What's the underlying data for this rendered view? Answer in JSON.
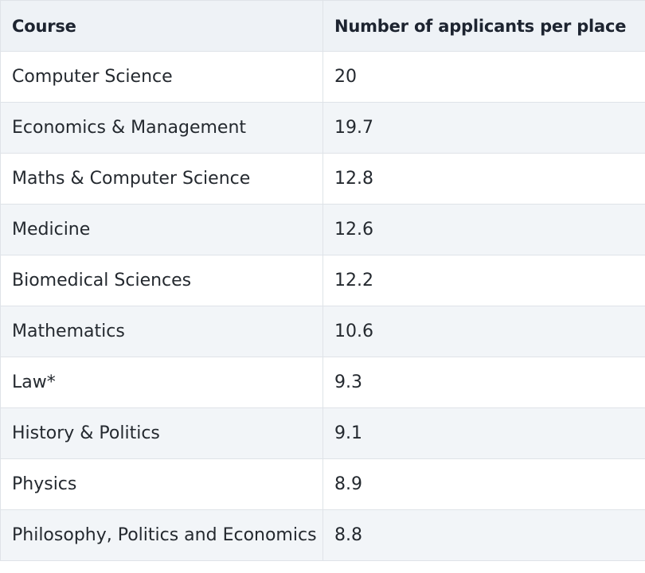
{
  "table": {
    "headers": [
      "Course",
      "Number of applicants per place"
    ],
    "rows": [
      [
        "Computer Science",
        "20"
      ],
      [
        "Economics & Management",
        "19.7"
      ],
      [
        "Maths & Computer Science",
        "12.8"
      ],
      [
        "Medicine",
        "12.6"
      ],
      [
        "Biomedical Sciences",
        "12.2"
      ],
      [
        "Mathematics",
        "10.6"
      ],
      [
        "Law*",
        "9.3"
      ],
      [
        "History & Politics",
        "9.1"
      ],
      [
        "Physics",
        "8.9"
      ],
      [
        "Philosophy, Politics and Economics",
        "8.8"
      ]
    ]
  }
}
